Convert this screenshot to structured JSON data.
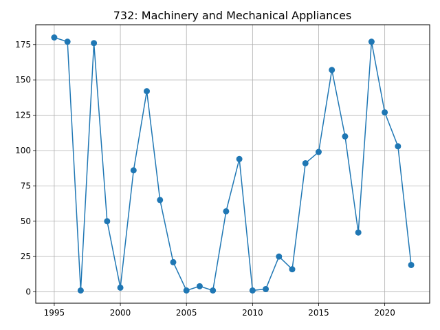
{
  "chart_data": {
    "type": "line",
    "title": "732: Machinery and Mechanical Appliances",
    "xlabel": "",
    "ylabel": "",
    "x": [
      1995,
      1996,
      1997,
      1998,
      1999,
      2000,
      2001,
      2002,
      2003,
      2004,
      2005,
      2006,
      2007,
      2008,
      2009,
      2010,
      2011,
      2012,
      2013,
      2014,
      2015,
      2016,
      2017,
      2018,
      2019,
      2020,
      2021,
      2022
    ],
    "series": [
      {
        "values": [
          180,
          177,
          1,
          176,
          50,
          3,
          86,
          142,
          65,
          21,
          1,
          4,
          1,
          57,
          94,
          1,
          2,
          25,
          16,
          91,
          99,
          157,
          110,
          42,
          177,
          127,
          103,
          19
        ],
        "color": "#1f77b4",
        "marker": "circle"
      }
    ],
    "xlim": [
      1993.6,
      2023.4
    ],
    "ylim": [
      -8,
      189
    ],
    "x_ticks": [
      1995,
      2000,
      2005,
      2010,
      2015,
      2020
    ],
    "x_tick_labels": [
      "1995",
      "2000",
      "2005",
      "2010",
      "2015",
      "2020"
    ],
    "y_ticks": [
      0,
      25,
      50,
      75,
      100,
      125,
      150,
      175
    ],
    "y_tick_labels": [
      "0",
      "25",
      "50",
      "75",
      "100",
      "125",
      "150",
      "175"
    ],
    "grid": true,
    "legend": false
  }
}
